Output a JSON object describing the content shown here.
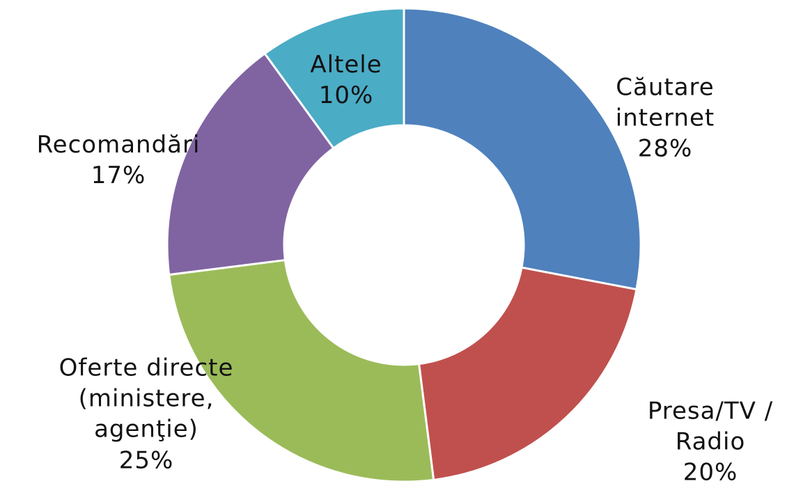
{
  "chart_data": {
    "type": "donut",
    "categories": [
      "Căutare internet",
      "Presa/TV / Radio",
      "Oferte directe (ministere, agenţie)",
      "Recomandări",
      "Altele"
    ],
    "values": [
      28,
      20,
      25,
      17,
      10
    ],
    "value_labels": [
      "28%",
      "20%",
      "25%",
      "17%",
      "10%"
    ],
    "colors": [
      "#4f81bd",
      "#c0504d",
      "#9bbb59",
      "#8064a2",
      "#4bacc6"
    ]
  }
}
